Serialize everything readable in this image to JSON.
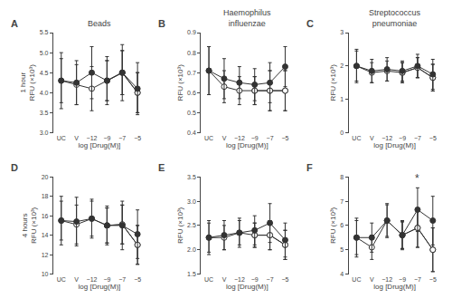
{
  "chart_data": [
    {
      "type": "line",
      "label": "A",
      "title": "Beads",
      "xlabel": "log [Drug(M)]",
      "ylabel": "1 hour\nRFU (×10³)",
      "categories": [
        "UC",
        "V",
        "−12",
        "−9",
        "−7",
        "−5"
      ],
      "series": [
        {
          "color": "#333333",
          "marker": "filled",
          "values": [
            4.3,
            4.25,
            4.5,
            4.3,
            4.5,
            4.1
          ],
          "errors": [
            0.7,
            0.55,
            0.65,
            0.6,
            0.7,
            0.65
          ]
        },
        {
          "color": "#333333",
          "marker": "open",
          "values": [
            4.3,
            4.2,
            4.1,
            4.3,
            4.5,
            4.0
          ],
          "errors": [
            0.55,
            0.5,
            0.55,
            0.5,
            0.55,
            0.5
          ]
        },
        {
          "color": "#333333",
          "marker": "open",
          "values": [
            null,
            null,
            null,
            4.3,
            4.5,
            4.0
          ],
          "errors": [
            null,
            null,
            null,
            0.5,
            0.55,
            0.5
          ]
        }
      ],
      "ylim": [
        3.0,
        5.5
      ],
      "yticks": [
        {
          "value": 3.0,
          "label": "3.0"
        },
        3.5,
        {
          "value": 4.0,
          "label": "4.0"
        },
        4.5,
        {
          "value": 5.0,
          "label": "5.0"
        },
        5.5
      ],
      "grid": false
    },
    {
      "type": "line",
      "label": "B",
      "title": "Haemophilus\ninfluenzae",
      "xlabel": "log [Drug(M)]",
      "ylabel": "RFU (×10³)",
      "categories": [
        "UC",
        "V",
        "−12",
        "−9",
        "−7",
        "−5"
      ],
      "series": [
        {
          "color": "#333333",
          "marker": "filled",
          "values": [
            0.71,
            0.67,
            0.65,
            0.64,
            0.65,
            0.73
          ],
          "errors": [
            0.12,
            0.1,
            0.08,
            0.08,
            0.1,
            0.1
          ]
        },
        {
          "color": "#333333",
          "marker": "open",
          "values": [
            0.71,
            0.63,
            0.61,
            0.61,
            0.61,
            0.61
          ],
          "errors": [
            0.12,
            0.08,
            0.07,
            0.07,
            0.1,
            0.1
          ]
        },
        {
          "color": "#333333",
          "marker": "open",
          "values": [
            null,
            null,
            null,
            0.61,
            0.61,
            0.61
          ],
          "errors": [
            null,
            null,
            null,
            0.07,
            0.1,
            0.1
          ]
        }
      ],
      "ylim": [
        0.4,
        0.9
      ],
      "yticks": [
        0.4,
        0.5,
        0.6,
        0.7,
        0.8,
        0.9
      ],
      "grid": false
    },
    {
      "type": "line",
      "label": "C",
      "title": "Streptococcus\npneumoniae",
      "xlabel": "log [Drug(M)]",
      "ylabel": "RFU (×10³)",
      "categories": [
        "UC",
        "V",
        "−12",
        "−9",
        "−7",
        "−5"
      ],
      "series": [
        {
          "color": "#333333",
          "marker": "filled",
          "values": [
            2.0,
            1.85,
            1.9,
            1.85,
            2.0,
            1.75
          ],
          "errors": [
            0.5,
            0.35,
            0.35,
            0.3,
            0.35,
            0.45
          ]
        },
        {
          "color": "#333333",
          "marker": "open",
          "values": [
            2.0,
            1.8,
            1.85,
            1.8,
            1.95,
            1.65
          ],
          "errors": [
            0.45,
            0.3,
            0.3,
            0.3,
            0.3,
            0.4
          ]
        },
        {
          "color": "#333333",
          "marker": "open",
          "values": [
            null,
            null,
            null,
            1.8,
            1.95,
            1.65
          ],
          "errors": [
            null,
            null,
            null,
            0.3,
            0.3,
            0.4
          ]
        }
      ],
      "ylim": [
        0,
        3.0
      ],
      "yticks": [
        0,
        1,
        2,
        3
      ],
      "grid": false
    },
    {
      "type": "line",
      "label": "D",
      "xlabel": "log [Drug(M)]",
      "ylabel": "4 hours\nRFU (×10³)",
      "categories": [
        "UC",
        "V",
        "−12",
        "−9",
        "−7",
        "−5"
      ],
      "series": [
        {
          "color": "#333333",
          "marker": "filled",
          "values": [
            15.5,
            15.4,
            15.7,
            15.0,
            15.0,
            14.1
          ],
          "errors": [
            2.5,
            2.5,
            2.0,
            2.0,
            2.5,
            2.5
          ]
        },
        {
          "color": "#333333",
          "marker": "open",
          "values": [
            15.5,
            15.1,
            15.7,
            15.0,
            15.1,
            13.0
          ],
          "errors": [
            2.0,
            2.0,
            1.8,
            1.8,
            2.0,
            2.0
          ]
        },
        {
          "color": "#333333",
          "marker": "open",
          "values": [
            null,
            null,
            null,
            15.0,
            15.1,
            13.0
          ],
          "errors": [
            null,
            null,
            null,
            1.8,
            2.0,
            2.0
          ]
        }
      ],
      "ylim": [
        10,
        20
      ],
      "yticks": [
        10,
        12,
        14,
        16,
        18,
        20
      ],
      "grid": false
    },
    {
      "type": "line",
      "label": "E",
      "xlabel": "log [Drug(M)]",
      "ylabel": "RFU (×10³)",
      "categories": [
        "UC",
        "V",
        "−12",
        "−9",
        "−7",
        "−5"
      ],
      "series": [
        {
          "color": "#333333",
          "marker": "filled",
          "values": [
            2.25,
            2.3,
            2.35,
            2.4,
            2.55,
            2.2
          ],
          "errors": [
            0.35,
            0.3,
            0.3,
            0.3,
            0.4,
            0.35
          ]
        },
        {
          "color": "#333333",
          "marker": "open",
          "values": [
            2.25,
            2.25,
            2.35,
            2.3,
            2.3,
            2.1
          ],
          "errors": [
            0.3,
            0.25,
            0.25,
            0.25,
            0.3,
            0.3
          ]
        },
        {
          "color": "#333333",
          "marker": "open",
          "values": [
            null,
            null,
            null,
            2.3,
            2.3,
            2.1
          ],
          "errors": [
            null,
            null,
            null,
            0.25,
            0.3,
            0.3
          ]
        }
      ],
      "ylim": [
        1.5,
        3.5
      ],
      "yticks": [
        1.5,
        {
          "value": 2.0,
          "label": "2.0"
        },
        2.5,
        {
          "value": 3.0,
          "label": "3.0"
        },
        3.5
      ],
      "grid": false
    },
    {
      "type": "line",
      "label": "F",
      "xlabel": "log [Drug(M)]",
      "ylabel": "RFU (×10³)",
      "categories": [
        "UC",
        "V",
        "−12",
        "−9",
        "−7",
        "−5"
      ],
      "series": [
        {
          "color": "#333333",
          "marker": "filled",
          "values": [
            5.5,
            5.5,
            6.2,
            5.6,
            6.65,
            6.2
          ],
          "errors": [
            0.8,
            0.6,
            0.7,
            0.6,
            0.9,
            1.0
          ]
        },
        {
          "color": "#333333",
          "marker": "open",
          "values": [
            5.5,
            5.1,
            6.2,
            5.6,
            5.9,
            5.0
          ],
          "errors": [
            0.7,
            0.5,
            0.65,
            0.55,
            0.8,
            0.9
          ]
        },
        {
          "color": "#333333",
          "marker": "open",
          "values": [
            null,
            null,
            null,
            5.6,
            5.9,
            5.0
          ],
          "errors": [
            null,
            null,
            null,
            0.55,
            0.8,
            0.9
          ]
        }
      ],
      "ylim": [
        4,
        8
      ],
      "yticks": [
        4,
        5,
        6,
        7,
        8
      ],
      "annotations": [
        {
          "text": "*",
          "category": "−7"
        }
      ],
      "grid": false
    }
  ]
}
